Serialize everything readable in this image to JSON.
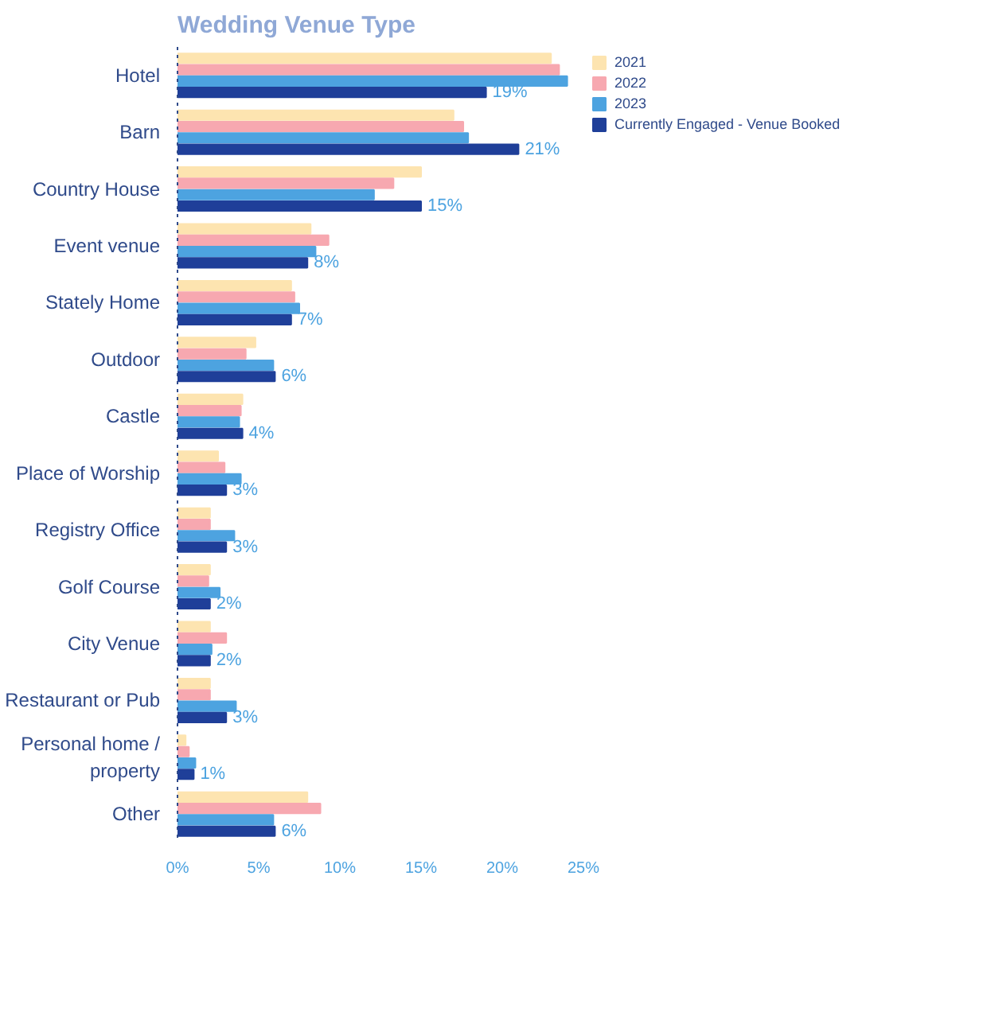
{
  "chart_data": {
    "type": "bar",
    "orientation": "horizontal",
    "title": "Wedding Venue Type",
    "categories": [
      "Hotel",
      "Barn",
      "Country House",
      "Event venue",
      "Stately Home",
      "Outdoor",
      "Castle",
      "Place of Worship",
      "Registry Office",
      "Golf Course",
      "City Venue",
      "Restaurant or Pub",
      "Personal home / property",
      "Other"
    ],
    "series": [
      {
        "name": "2021",
        "color": "#fde4b0",
        "values": [
          23,
          17,
          15,
          8.2,
          7,
          4.8,
          4,
          2.5,
          2,
          2,
          2,
          2,
          0.5,
          8
        ]
      },
      {
        "name": "2022",
        "color": "#f7a8b0",
        "values": [
          23.5,
          17.6,
          13.3,
          9.3,
          7.2,
          4.2,
          3.9,
          2.9,
          2,
          1.9,
          3,
          2,
          0.7,
          8.8
        ]
      },
      {
        "name": "2023",
        "color": "#4da3e0",
        "values": [
          24,
          17.9,
          12.1,
          8.5,
          7.5,
          5.9,
          3.8,
          3.9,
          3.5,
          2.6,
          2.1,
          3.6,
          1.1,
          5.9
        ]
      },
      {
        "name": "Currently Engaged - Venue Booked",
        "color": "#1f3f99",
        "values": [
          19,
          21,
          15,
          8,
          7,
          6,
          4,
          3,
          3,
          2,
          2,
          3,
          1,
          6
        ],
        "value_labels": [
          "19%",
          "21%",
          "15%",
          "8%",
          "7%",
          "6%",
          "4%",
          "3%",
          "3%",
          "2%",
          "2%",
          "3%",
          "1%",
          "6%"
        ]
      }
    ],
    "xlim": [
      0,
      25
    ],
    "xticks": [
      {
        "value": 0,
        "label": "0%"
      },
      {
        "value": 5,
        "label": "5%"
      },
      {
        "value": 10,
        "label": "10%"
      },
      {
        "value": 15,
        "label": "15%"
      },
      {
        "value": 20,
        "label": "20%"
      },
      {
        "value": 25,
        "label": "25%"
      }
    ],
    "grid": false,
    "legend": "top right"
  }
}
